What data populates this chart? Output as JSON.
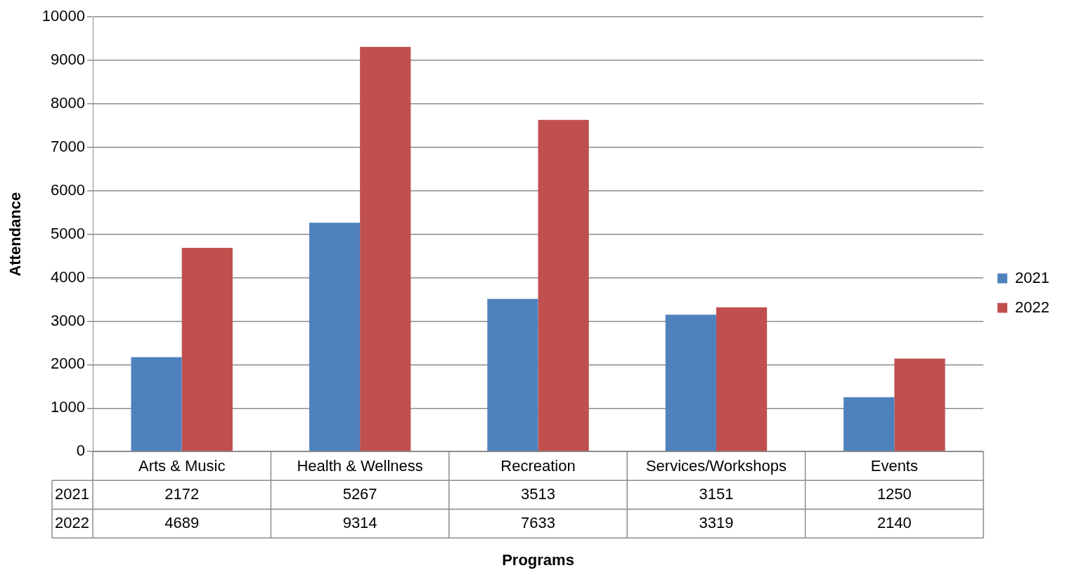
{
  "chart_data": {
    "type": "bar",
    "xlabel": "Programs",
    "ylabel": "Attendance",
    "categories": [
      "Arts & Music",
      "Health & Wellness",
      "Recreation",
      "Services/Workshops",
      "Events"
    ],
    "series": [
      {
        "name": "2021",
        "color": "#4f81bd",
        "values": [
          2172,
          5267,
          3513,
          3151,
          1250
        ]
      },
      {
        "name": "2022",
        "color": "#c0504d",
        "values": [
          4689,
          9314,
          7633,
          3319,
          2140
        ]
      }
    ],
    "ylim": [
      0,
      10000
    ],
    "yticks": [
      0,
      1000,
      2000,
      3000,
      4000,
      5000,
      6000,
      7000,
      8000,
      9000,
      10000
    ],
    "grid": "y",
    "legend": "right",
    "data_labels": true
  }
}
